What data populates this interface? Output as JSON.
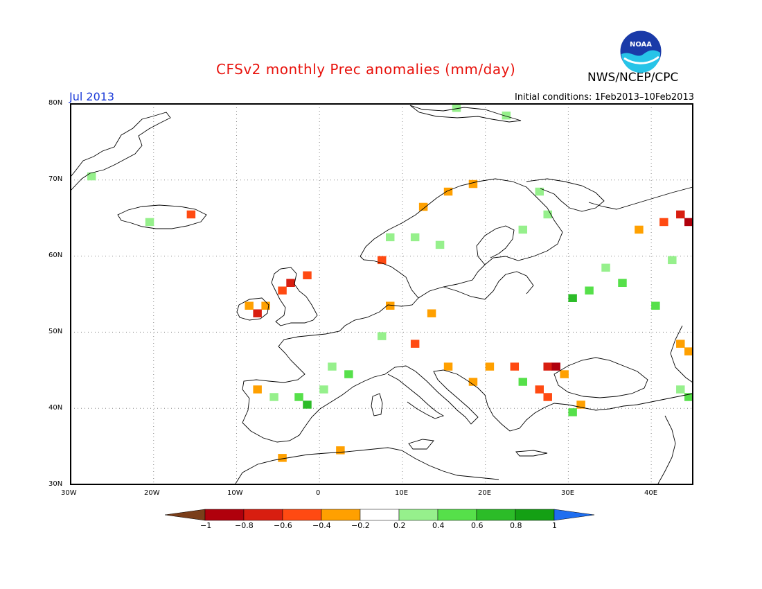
{
  "title": "CFSv2 monthly Prec anomalies (mm/day)",
  "agency": "NWS/NCEP/CPC",
  "logo_text": "NOAA",
  "month_label": "Jul 2013",
  "initial_conditions": "Initial conditions: 1Feb2013–10Feb2013",
  "map": {
    "lon_range": [
      -30,
      45
    ],
    "lat_range": [
      30,
      80
    ],
    "lat_ticks": [
      "80N",
      "70N",
      "60N",
      "50N",
      "40N",
      "30N"
    ],
    "lon_ticks": [
      "30W",
      "20W",
      "10W",
      "0",
      "10E",
      "20E",
      "30E",
      "40E"
    ],
    "grid": "dotted"
  },
  "colorbar": {
    "labels": [
      "−1",
      "−0.8",
      "−0.6",
      "−0.4",
      "−0.2",
      "0.2",
      "0.4",
      "0.6",
      "0.8",
      "1"
    ],
    "colors": [
      "#7a3e1a",
      "#b0000c",
      "#d81e10",
      "#ff4a12",
      "#ffa000",
      "#ffffff",
      "#96f08c",
      "#56e04a",
      "#2cbc28",
      "#14a014",
      "#1e6ef0"
    ]
  },
  "anomaly_cells": [
    {
      "lon": -2,
      "lat": 57,
      "cat": "neg04"
    },
    {
      "lon": -4,
      "lat": 56,
      "cat": "neg06"
    },
    {
      "lon": -5,
      "lat": 55,
      "cat": "neg04"
    },
    {
      "lon": -8,
      "lat": 52,
      "cat": "neg06"
    },
    {
      "lon": -9,
      "lat": 53,
      "cat": "neg02"
    },
    {
      "lon": -7,
      "lat": 53,
      "cat": "neg02"
    },
    {
      "lon": 8,
      "lat": 62,
      "cat": "pos02"
    },
    {
      "lon": 15,
      "lat": 68,
      "cat": "neg02"
    },
    {
      "lon": 12,
      "lat": 66,
      "cat": "neg02"
    },
    {
      "lon": 18,
      "lat": 69,
      "cat": "neg02"
    },
    {
      "lon": 7,
      "lat": 59,
      "cat": "neg04"
    },
    {
      "lon": 11,
      "lat": 62,
      "cat": "pos02"
    },
    {
      "lon": 14,
      "lat": 61,
      "cat": "pos02"
    },
    {
      "lon": 26,
      "lat": 68,
      "cat": "pos02"
    },
    {
      "lon": 27,
      "lat": 65,
      "cat": "pos02"
    },
    {
      "lon": 24,
      "lat": 63,
      "cat": "pos02"
    },
    {
      "lon": 43,
      "lat": 65,
      "cat": "neg06"
    },
    {
      "lon": 44,
      "lat": 64,
      "cat": "neg08"
    },
    {
      "lon": 41,
      "lat": 64,
      "cat": "neg04"
    },
    {
      "lon": 38,
      "lat": 63,
      "cat": "neg02"
    },
    {
      "lon": 36,
      "lat": 56,
      "cat": "pos04"
    },
    {
      "lon": 32,
      "lat": 55,
      "cat": "pos04"
    },
    {
      "lon": 30,
      "lat": 54,
      "cat": "pos06"
    },
    {
      "lon": 40,
      "lat": 53,
      "cat": "pos04"
    },
    {
      "lon": 34,
      "lat": 58,
      "cat": "pos02"
    },
    {
      "lon": 42,
      "lat": 59,
      "cat": "pos02"
    },
    {
      "lon": 8,
      "lat": 53,
      "cat": "neg02"
    },
    {
      "lon": 13,
      "lat": 52,
      "cat": "neg02"
    },
    {
      "lon": 11,
      "lat": 48,
      "cat": "neg04"
    },
    {
      "lon": 7,
      "lat": 49,
      "cat": "pos02"
    },
    {
      "lon": 3,
      "lat": 44,
      "cat": "pos04"
    },
    {
      "lon": 1,
      "lat": 45,
      "cat": "pos02"
    },
    {
      "lon": -3,
      "lat": 41,
      "cat": "pos04"
    },
    {
      "lon": -2,
      "lat": 40,
      "cat": "pos06"
    },
    {
      "lon": -6,
      "lat": 41,
      "cat": "pos02"
    },
    {
      "lon": -8,
      "lat": 42,
      "cat": "neg02"
    },
    {
      "lon": 0,
      "lat": 42,
      "cat": "pos02"
    },
    {
      "lon": 20,
      "lat": 45,
      "cat": "neg02"
    },
    {
      "lon": 23,
      "lat": 45,
      "cat": "neg04"
    },
    {
      "lon": 27,
      "lat": 45,
      "cat": "neg06"
    },
    {
      "lon": 28,
      "lat": 45,
      "cat": "neg08"
    },
    {
      "lon": 29,
      "lat": 44,
      "cat": "neg02"
    },
    {
      "lon": 15,
      "lat": 45,
      "cat": "neg02"
    },
    {
      "lon": 18,
      "lat": 43,
      "cat": "neg02"
    },
    {
      "lon": 26,
      "lat": 42,
      "cat": "neg04"
    },
    {
      "lon": 27,
      "lat": 41,
      "cat": "neg04"
    },
    {
      "lon": 24,
      "lat": 43,
      "cat": "pos04"
    },
    {
      "lon": 31,
      "lat": 40,
      "cat": "neg02"
    },
    {
      "lon": 30,
      "lat": 39,
      "cat": "pos04"
    },
    {
      "lon": 43,
      "lat": 48,
      "cat": "neg02"
    },
    {
      "lon": 44,
      "lat": 47,
      "cat": "neg02"
    },
    {
      "lon": 43,
      "lat": 42,
      "cat": "pos02"
    },
    {
      "lon": 44,
      "lat": 41,
      "cat": "pos04"
    },
    {
      "lon": 2,
      "lat": 34,
      "cat": "neg02"
    },
    {
      "lon": -5,
      "lat": 33,
      "cat": "neg02"
    },
    {
      "lon": -21,
      "lat": 64,
      "cat": "pos02"
    },
    {
      "lon": -16,
      "lat": 65,
      "cat": "neg04"
    },
    {
      "lon": -28,
      "lat": 70,
      "cat": "pos02"
    },
    {
      "lon": 16,
      "lat": 79,
      "cat": "pos02"
    },
    {
      "lon": 22,
      "lat": 78,
      "cat": "pos02"
    }
  ]
}
